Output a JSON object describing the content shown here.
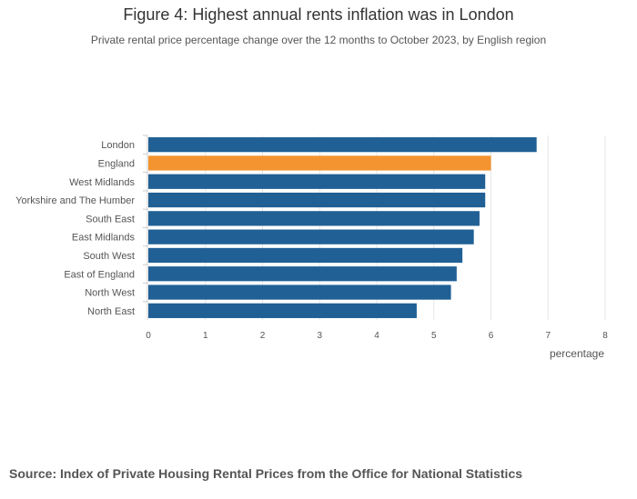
{
  "title": "Figure 4: Highest annual rents inflation was in London",
  "subtitle": "Private rental price percentage change over the 12 months to October 2023, by English region",
  "source": "Source: Index of Private Housing Rental Prices from the Office for National Statistics",
  "chart_data": {
    "type": "bar",
    "orientation": "horizontal",
    "categories": [
      "London",
      "England",
      "West Midlands",
      "Yorkshire and The Humber",
      "South East",
      "East Midlands",
      "South West",
      "East of England",
      "North West",
      "North East"
    ],
    "values": [
      6.8,
      6.0,
      5.9,
      5.9,
      5.8,
      5.7,
      5.5,
      5.4,
      5.3,
      4.7
    ],
    "highlight": "England",
    "colors": {
      "default": "#206095",
      "highlight": "#F39431"
    },
    "xlabel": "percentage",
    "ylabel": "",
    "xlim": [
      0,
      8
    ],
    "xticks": [
      0,
      1,
      2,
      3,
      4,
      5,
      6,
      7,
      8
    ],
    "grid": true,
    "legend": "none"
  }
}
